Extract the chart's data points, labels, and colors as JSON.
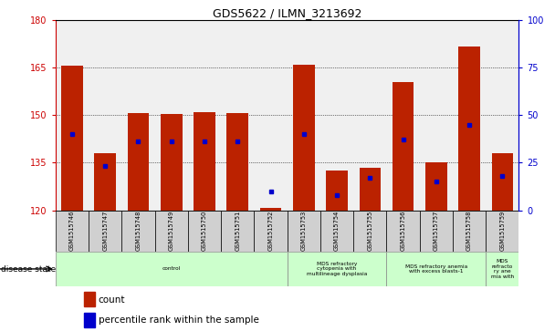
{
  "title": "GDS5622 / ILMN_3213692",
  "samples": [
    "GSM1515746",
    "GSM1515747",
    "GSM1515748",
    "GSM1515749",
    "GSM1515750",
    "GSM1515751",
    "GSM1515752",
    "GSM1515753",
    "GSM1515754",
    "GSM1515755",
    "GSM1515756",
    "GSM1515757",
    "GSM1515758",
    "GSM1515759"
  ],
  "counts": [
    165.5,
    138.0,
    150.5,
    150.2,
    151.0,
    150.5,
    120.8,
    165.8,
    132.5,
    133.5,
    160.5,
    135.2,
    171.5,
    138.0
  ],
  "percentile_ranks": [
    40,
    23,
    36,
    36,
    36,
    36,
    10,
    40,
    8,
    17,
    37,
    15,
    45,
    18
  ],
  "ylim_left": [
    120,
    180
  ],
  "ylim_right": [
    0,
    100
  ],
  "yticks_left": [
    120,
    135,
    150,
    165,
    180
  ],
  "yticks_right": [
    0,
    25,
    50,
    75,
    100
  ],
  "bar_color": "#bb2200",
  "dot_color": "#0000cc",
  "background_color": "#ffffff",
  "plot_bg_color": "#f0f0f0",
  "grid_color": "#000000",
  "left_axis_color": "#cc0000",
  "right_axis_color": "#0000cc",
  "disease_groups": [
    {
      "label": "control",
      "start": 0,
      "end": 7,
      "color": "#ccffcc"
    },
    {
      "label": "MDS refractory\ncytopenia with\nmultilineage dysplasia",
      "start": 7,
      "end": 10,
      "color": "#ccffcc"
    },
    {
      "label": "MDS refractory anemia\nwith excess blasts-1",
      "start": 10,
      "end": 13,
      "color": "#ccffcc"
    },
    {
      "label": "MDS\nrefracto\nry ane\nmia with",
      "start": 13,
      "end": 14,
      "color": "#ccffcc"
    }
  ],
  "legend_count_label": "count",
  "legend_pct_label": "percentile rank within the sample",
  "disease_state_label": "disease state"
}
